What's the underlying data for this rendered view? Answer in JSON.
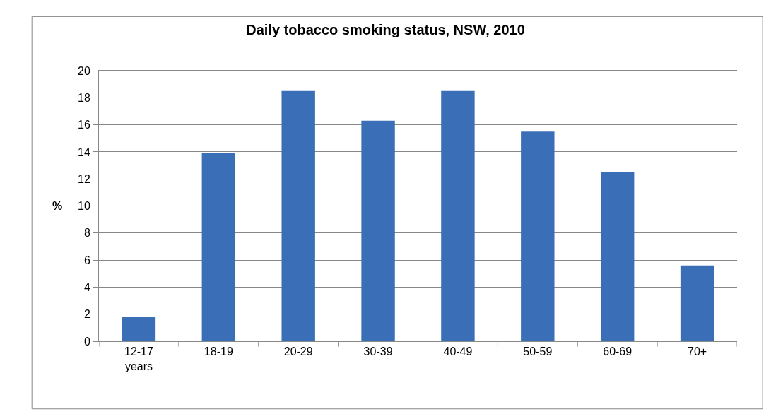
{
  "chart_data": {
    "type": "bar",
    "title": "Daily tobacco smoking status, NSW, 2010",
    "ylabel": "%",
    "categories": [
      "12-17 years",
      "18-19",
      "20-29",
      "30-39",
      "40-49",
      "50-59",
      "60-69",
      "70+"
    ],
    "values": [
      1.8,
      13.9,
      18.5,
      16.3,
      18.5,
      15.5,
      12.5,
      5.6
    ],
    "color": "#3a6fb7",
    "ylim": [
      0,
      20
    ],
    "yticks": [
      0,
      2,
      4,
      6,
      8,
      10,
      12,
      14,
      16,
      18,
      20
    ],
    "grid": "y"
  }
}
